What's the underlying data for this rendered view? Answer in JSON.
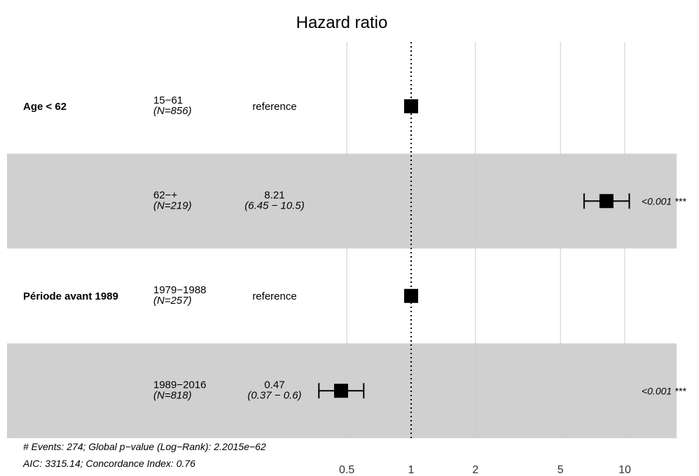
{
  "chart_data": {
    "type": "forest",
    "title": "Hazard ratio",
    "x_scale": "log",
    "xlim": [
      0.3,
      16
    ],
    "x_ticks": [
      0.5,
      1,
      2,
      5,
      10
    ],
    "x_tick_labels": [
      "0.5",
      "1",
      "2",
      "5",
      "10"
    ],
    "reference_line": 1,
    "rows": [
      {
        "variable": "Age < 62",
        "level": "15−61",
        "n": "(N=856)",
        "estimate_text": "reference",
        "ci_text": "",
        "hr": 1,
        "ci": null,
        "p": "",
        "shaded": false
      },
      {
        "variable": "",
        "level": "62−+",
        "n": "(N=219)",
        "estimate_text": "8.21",
        "ci_text": "(6.45 − 10.5)",
        "hr": 8.21,
        "ci": [
          6.45,
          10.5
        ],
        "p": "<0.001 ***",
        "shaded": true
      },
      {
        "variable": "Période avant 1989",
        "level": "1979−1988",
        "n": "(N=257)",
        "estimate_text": "reference",
        "ci_text": "",
        "hr": 1,
        "ci": null,
        "p": "",
        "shaded": false
      },
      {
        "variable": "",
        "level": "1989−2016",
        "n": "(N=818)",
        "estimate_text": "0.47",
        "ci_text": "(0.37 −  0.6)",
        "hr": 0.47,
        "ci": [
          0.37,
          0.6
        ],
        "p": "<0.001 ***",
        "shaded": true
      }
    ],
    "footer": [
      "# Events: 274; Global p−value (Log−Rank): 2.2015e−62",
      "AIC: 3315.14; Concordance Index: 0.76"
    ],
    "colors": {
      "band": "#d0d0d0",
      "marker": "#000000",
      "grid": "#cccccc"
    }
  }
}
